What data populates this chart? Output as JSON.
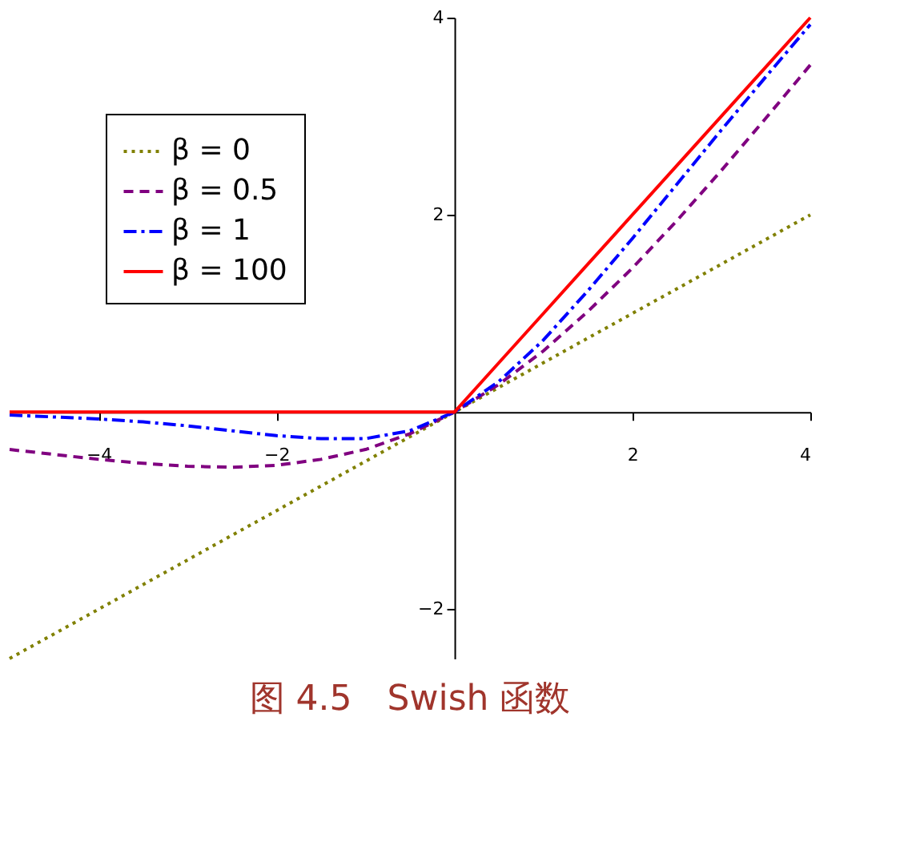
{
  "chart_data": {
    "type": "line",
    "title": "图 4.5　Swish 函数",
    "x": [
      -5,
      -4.5,
      -4,
      -3.5,
      -3,
      -2.5,
      -2,
      -1.5,
      -1,
      -0.5,
      0,
      0.5,
      1,
      1.5,
      2,
      2.5,
      3,
      3.5,
      4
    ],
    "series": [
      {
        "name": "β = 0",
        "color": "#808000",
        "line_style": "dotted",
        "values": [
          -2.5,
          -2.25,
          -2,
          -1.75,
          -1.5,
          -1.25,
          -1,
          -0.75,
          -0.5,
          -0.25,
          0,
          0.25,
          0.5,
          0.75,
          1,
          1.25,
          1.5,
          1.75,
          2
        ]
      },
      {
        "name": "β = 0.5",
        "color": "#800080",
        "line_style": "dashed",
        "values": [
          -0.38,
          -0.43,
          -0.48,
          -0.52,
          -0.55,
          -0.56,
          -0.54,
          -0.48,
          -0.38,
          -0.22,
          0,
          0.28,
          0.62,
          1.02,
          1.46,
          1.94,
          2.45,
          2.98,
          3.52
        ]
      },
      {
        "name": "β = 1",
        "color": "#0000ff",
        "line_style": "dashdot",
        "values": [
          -0.03,
          -0.05,
          -0.07,
          -0.1,
          -0.14,
          -0.19,
          -0.24,
          -0.27,
          -0.27,
          -0.19,
          0,
          0.31,
          0.73,
          1.23,
          1.76,
          2.31,
          2.86,
          3.4,
          3.93
        ]
      },
      {
        "name": "β = 100",
        "color": "#ff0000",
        "line_style": "solid",
        "values": [
          0,
          0,
          0,
          0,
          0,
          0,
          0,
          0,
          0,
          0,
          0,
          0.5,
          1,
          1.5,
          2,
          2.5,
          3,
          3.5,
          4
        ]
      }
    ],
    "xlim": [
      -5,
      4
    ],
    "ylim": [
      -2.5,
      4
    ],
    "xticks": [
      -4,
      -2,
      2,
      4
    ],
    "yticks": [
      -2,
      2,
      4
    ],
    "grid": false,
    "legend": "top left",
    "marker": "none"
  }
}
